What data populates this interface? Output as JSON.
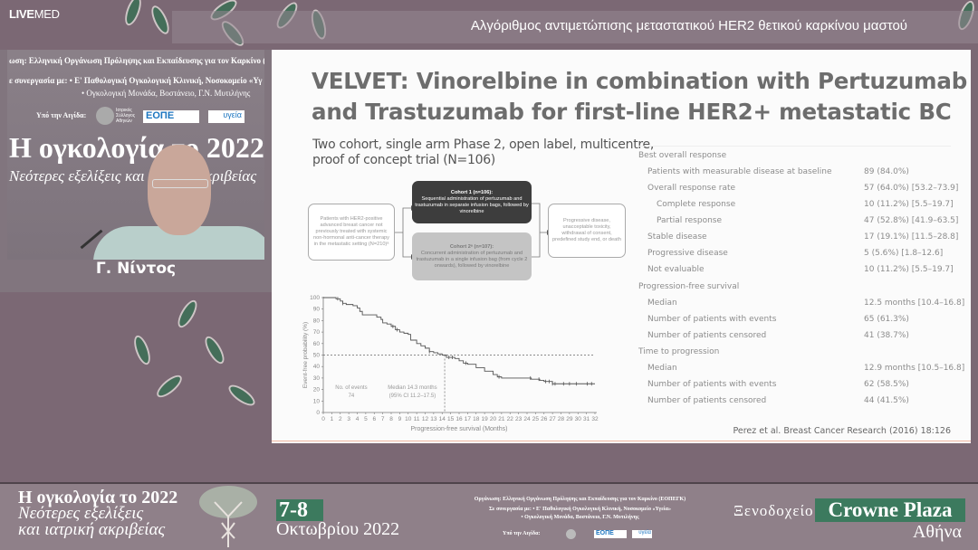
{
  "brand": {
    "live": "LIVE",
    "med": "MED"
  },
  "header": {
    "title": "Αλγόριθμος αντιμετώπισης μεταστατικού HER2 θετικού καρκίνου μαστού"
  },
  "webcam": {
    "backdrop_org": "ωση: Ελληνική Οργάνωση Πρόληψης και Εκπαίδευσης για τον Καρκίνο (",
    "backdrop_coop1": "ε συνεργασία με: • Ε' Παθολογική Ογκολογική Κλινική, Νοσοκομείο «Υγ",
    "backdrop_coop2": "• Ογκολογική Μονάδα, Βοστάνειο, Γ.Ν. Μυτιλήνης",
    "backdrop_aegis": "Υπό την Αιγίδα:",
    "backdrop_isa": "Ιατρικός Σύλλογος Αθηνών",
    "backdrop_eope": "ΕΟΠΕ",
    "backdrop_ygeia": "υγεία",
    "backdrop_title": "Η ογκολογία το 2022",
    "backdrop_subtitle": "Νεότερες εξελίξεις και ιατρική ακριβείας",
    "speaker_name": "Γ. Νίντος"
  },
  "slide": {
    "title_line1": "VELVET: Vinorelbine in combination with Pertuzumab",
    "title_line2": "and Trastuzumab for first-line HER2+ metastatic BC",
    "subtitle_line1": "Two cohort, single arm Phase 2, open label, multicentre,",
    "subtitle_line2": "proof of concept trial (N=106)",
    "flow": {
      "patients": "Patients with HER2-positive advanced breast cancer not previously treated with systemic non-hormonal anti-cancer therapy in the metastatic setting (N=210)ᵃ",
      "cohort1_title": "Cohort 1 (n=106):",
      "cohort1_text": "Sequential administration of pertuzumab and trastuzumab in separate infusion bags, followed by vinorelbine",
      "cohort2_title": "Cohort 2ᵃ (n=107):",
      "cohort2_text": "Concurrent administration of pertuzumab and trastuzumab in a single infusion bag (from cycle 2 onwards), followed by vinorelbine",
      "outcome": "Progressive disease, unacceptable toxicity, withdrawal of consent, predefined study end, or death"
    },
    "table": [
      {
        "label": "Best overall response",
        "value": "",
        "indent": 0
      },
      {
        "label": "Patients with measurable disease at baseline",
        "value": "89 (84.0%)",
        "indent": 1
      },
      {
        "label": "Overall response rate",
        "value": "57 (64.0%) [53.2–73.9]",
        "indent": 1
      },
      {
        "label": "Complete response",
        "value": "10 (11.2%) [5.5–19.7]",
        "indent": 2
      },
      {
        "label": "Partial response",
        "value": "47 (52.8%) [41.9–63.5]",
        "indent": 2
      },
      {
        "label": "Stable disease",
        "value": "17 (19.1%) [11.5–28.8]",
        "indent": 1
      },
      {
        "label": "Progressive disease",
        "value": "5 (5.6%) [1.8–12.6]",
        "indent": 1
      },
      {
        "label": "Not evaluable",
        "value": "10 (11.2%) [5.5–19.7]",
        "indent": 1
      },
      {
        "label": "Progression-free survival",
        "value": "",
        "indent": 0
      },
      {
        "label": "Median",
        "value": "12.5 months [10.4–16.8]",
        "indent": 1
      },
      {
        "label": "Number of patients with events",
        "value": "65 (61.3%)",
        "indent": 1
      },
      {
        "label": "Number of patients censored",
        "value": "41 (38.7%)",
        "indent": 1
      },
      {
        "label": "Time to progression",
        "value": "",
        "indent": 0
      },
      {
        "label": "Median",
        "value": "12.9 months [10.5–16.8]",
        "indent": 1
      },
      {
        "label": "Number of patients with events",
        "value": "62 (58.5%)",
        "indent": 1
      },
      {
        "label": "Number of patients censored",
        "value": "44 (41.5%)",
        "indent": 1
      }
    ],
    "citation": "Perez et al. Breast Cancer Research (2016) 18:126"
  },
  "chart_data": {
    "type": "line",
    "subtype": "kaplan-meier step",
    "xlabel": "Progression-free survival (Months)",
    "ylabel": "Event-free probability (%)",
    "xlim": [
      0,
      32
    ],
    "ylim": [
      0,
      100
    ],
    "xticks": [
      0,
      1,
      2,
      3,
      4,
      5,
      6,
      7,
      8,
      9,
      10,
      11,
      12,
      13,
      14,
      15,
      16,
      17,
      18,
      19,
      20,
      21,
      22,
      23,
      24,
      25,
      26,
      27,
      28,
      29,
      30,
      31,
      32
    ],
    "yticks": [
      0,
      10,
      20,
      30,
      40,
      50,
      60,
      70,
      80,
      90,
      100
    ],
    "grid": false,
    "series": [
      {
        "x": [
          0,
          1.5,
          2,
          2.3,
          2.7,
          3.5,
          4,
          4.3,
          4.6,
          6,
          6.3,
          6.8,
          7,
          7.5,
          8,
          8.5,
          9,
          9.5,
          10,
          10.3,
          11,
          11.5,
          12,
          12.5,
          13,
          13.5,
          14,
          14.5,
          15.5,
          16,
          16.5,
          17,
          18,
          19,
          20,
          20.5,
          21,
          24,
          24.5,
          25.5,
          26,
          27,
          32
        ],
        "y": [
          100,
          99,
          97,
          95,
          94,
          93,
          91,
          88,
          85,
          85,
          83,
          81,
          78,
          77,
          75,
          72,
          70,
          69,
          68,
          63,
          60,
          58,
          56,
          53,
          52,
          51,
          50,
          48,
          47,
          45,
          43,
          42,
          39,
          36,
          33,
          31,
          30,
          30,
          29,
          28,
          27,
          25,
          25
        ]
      }
    ],
    "censored_x": [
      1.7,
      2.3,
      8.2,
      8.7,
      12.5,
      14.8,
      15.2,
      16.8,
      20.7,
      24.4,
      25.4,
      26.2,
      26.6,
      27,
      27.3,
      28.3,
      29,
      29.8,
      31.1,
      31.6
    ],
    "reference_lines": {
      "y": 50,
      "x": 14.3
    },
    "annotations": {
      "events_label": "No. of events",
      "events_value": "74",
      "median_label": "Median 14.3 months",
      "median_ci": "(95% CI 11.2–17.5)"
    },
    "color": "#555555"
  },
  "banner": {
    "title": "Η ογκολογία το 2022",
    "subtitle1": "Νεότερες εξελίξεις",
    "subtitle2": "και ιατρική ακριβείας",
    "dates": "7-8",
    "month_year": "Οκτωβρίου 2022",
    "org": "Οργάνωση: Ελληνική Οργάνωση Πρόληψης και Εκπαίδευσης για τον Καρκίνο (ΕΟΠΕΓΚ)",
    "coop1": "Σε συνεργασία με: • Ε' Παθολογική Ογκολογική Κλινική, Νοσοκομείο «Υγεία»",
    "coop2": "• Ογκολογική Μονάδα, Βοστάνειο, Γ.Ν. Μυτιλήνης",
    "aegis": "Υπό την Αιγίδα:",
    "eope": "ΕΟΠΕ",
    "ygeia": "υγεία",
    "hotel": "Ξενοδοχείο",
    "hotel_name": "Crowne Plaza",
    "city": "Αθήνα",
    "accent": "#3c7a5e"
  }
}
